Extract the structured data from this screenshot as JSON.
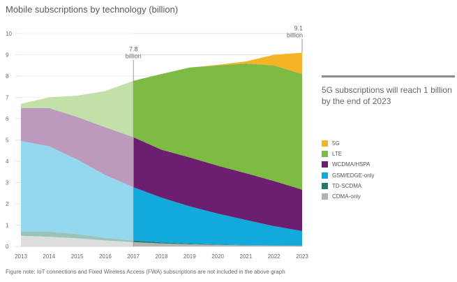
{
  "title": "Mobile subscriptions by technology (billion)",
  "callout": "5G subscriptions will reach 1 billion by the end of 2023",
  "footnote": "Figure note: IoT connections and Fixed Wireless Access (FWA) subscriptions are not included in the above graph",
  "colors": {
    "5G": "#f5b325",
    "LTE": "#7dbb42",
    "WCDMA/HSPA": "#6b1f6e",
    "GSM/EDGE-only": "#12a9dc",
    "TD-SCDMA": "#1f7a6c",
    "CDMA-only": "#b3b3b3"
  },
  "chart_data": {
    "type": "area",
    "stacked": true,
    "x": [
      2013,
      2014,
      2015,
      2016,
      2017,
      2018,
      2019,
      2020,
      2021,
      2022,
      2023
    ],
    "ylim": [
      0,
      10
    ],
    "yticks": [
      0,
      1,
      2,
      3,
      4,
      5,
      6,
      7,
      8,
      9,
      10
    ],
    "historical_through": 2017,
    "series": [
      {
        "name": "CDMA-only",
        "values": [
          0.5,
          0.45,
          0.38,
          0.28,
          0.2,
          0.14,
          0.1,
          0.07,
          0.05,
          0.04,
          0.03
        ]
      },
      {
        "name": "TD-SCDMA",
        "values": [
          0.2,
          0.25,
          0.2,
          0.12,
          0.08,
          0.05,
          0.03,
          0.02,
          0.01,
          0.01,
          0.01
        ]
      },
      {
        "name": "GSM/EDGE-only",
        "values": [
          4.25,
          4.0,
          3.5,
          2.95,
          2.5,
          2.1,
          1.75,
          1.45,
          1.18,
          0.9,
          0.68
        ]
      },
      {
        "name": "WCDMA/HSPA",
        "values": [
          1.55,
          1.8,
          2.0,
          2.25,
          2.35,
          2.25,
          2.3,
          2.25,
          2.2,
          2.12,
          1.95
        ]
      },
      {
        "name": "LTE",
        "values": [
          0.2,
          0.5,
          1.0,
          1.7,
          2.65,
          3.56,
          4.22,
          4.71,
          5.15,
          5.43,
          5.43
        ]
      },
      {
        "name": "5G",
        "values": [
          0,
          0,
          0,
          0,
          0,
          0,
          0,
          0.03,
          0.1,
          0.5,
          1.0
        ]
      }
    ],
    "annotations": [
      {
        "x": 2017,
        "value": "7.8",
        "label": "billion"
      },
      {
        "x": 2023,
        "value": "9.1",
        "label": "billion"
      }
    ],
    "legend": {
      "position": "right",
      "entries": [
        "5G",
        "LTE",
        "WCDMA/HSPA",
        "GSM/EDGE-only",
        "TD-SCDMA",
        "CDMA-only"
      ]
    }
  }
}
